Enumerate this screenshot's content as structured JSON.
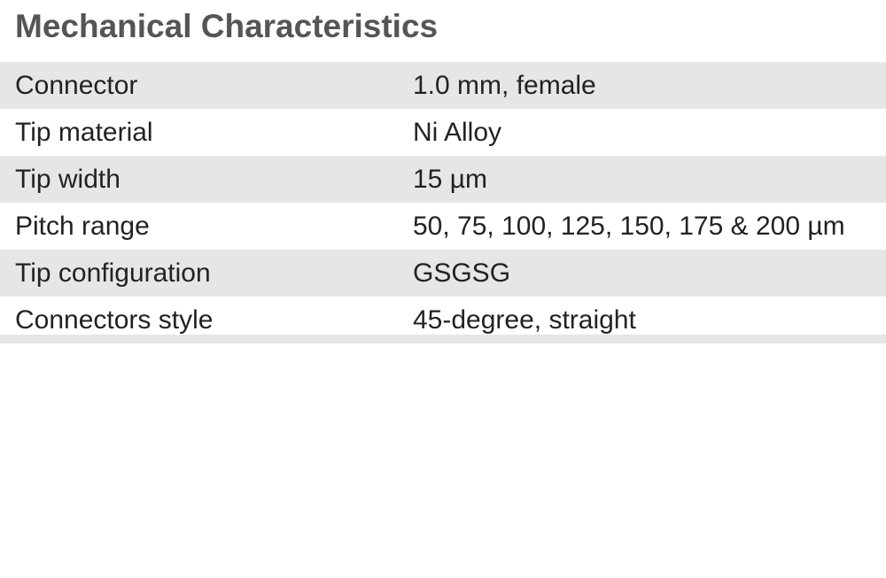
{
  "title": "Mechanical Characteristics",
  "rows": [
    {
      "label": "Connector",
      "value": "1.0 mm, female"
    },
    {
      "label": "Tip material",
      "value": "Ni Alloy"
    },
    {
      "label": "Tip width",
      "value": "15 µm"
    },
    {
      "label": "Pitch range",
      "value": "50, 75, 100, 125, 150, 175 & 200 µm"
    },
    {
      "label": "Tip configuration",
      "value": "GSGSG"
    },
    {
      "label": "Connectors style",
      "value": "45-degree, straight"
    }
  ],
  "colors": {
    "title": "#555555",
    "text": "#222222",
    "row_shade": "#e6e6e6",
    "background": "#ffffff"
  }
}
